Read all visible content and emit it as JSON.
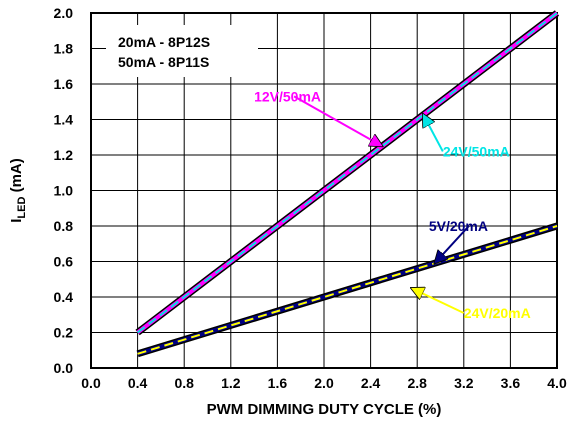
{
  "chart_data": {
    "type": "line",
    "title": "",
    "xlabel": "PWM DIMMING DUTY CYCLE (%)",
    "ylabel": {
      "main": "I",
      "sub": "LED",
      "unit": " (mA)"
    },
    "xlim": [
      0.0,
      4.0
    ],
    "ylim": [
      0.0,
      2.0
    ],
    "xticks": [
      "0.0",
      "0.4",
      "0.8",
      "1.2",
      "1.6",
      "2.0",
      "2.4",
      "2.8",
      "3.2",
      "3.6",
      "4.0"
    ],
    "yticks": [
      "0.0",
      "0.2",
      "0.4",
      "0.6",
      "0.8",
      "1.0",
      "1.2",
      "1.4",
      "1.6",
      "1.8",
      "2.0"
    ],
    "grid": true,
    "series": [
      {
        "name": "12V/50mA",
        "color": "#ff00ff",
        "x": [
          0.4,
          4.0
        ],
        "y": [
          0.2,
          2.0
        ],
        "style": "solid"
      },
      {
        "name": "24V/50mA",
        "color": "#00e5e5",
        "x": [
          0.4,
          4.0
        ],
        "y": [
          0.2,
          2.0
        ],
        "style": "dashed"
      },
      {
        "name": "5V/20mA",
        "color": "#000080",
        "x": [
          0.4,
          4.0
        ],
        "y": [
          0.08,
          0.8
        ],
        "style": "solid"
      },
      {
        "name": "24V/20mA",
        "color": "#ffff00",
        "x": [
          0.4,
          4.0
        ],
        "y": [
          0.08,
          0.8
        ],
        "style": "dashed"
      }
    ],
    "legend_box": [
      "20mA - 8P12S",
      "50mA - 8P11S"
    ],
    "annotations": [
      {
        "text": "12V/50mA",
        "color": "#ff00ff",
        "text_at": [
          1.4,
          1.53
        ],
        "arrow_to": [
          2.5,
          1.25
        ]
      },
      {
        "text": "24V/50mA",
        "color": "#00e5e5",
        "text_at": [
          3.02,
          1.22
        ],
        "arrow_to": [
          2.85,
          1.43
        ]
      },
      {
        "text": "5V/20mA",
        "color": "#000080",
        "text_at": [
          2.9,
          0.8
        ],
        "arrow_to": [
          2.95,
          0.59
        ]
      },
      {
        "text": "24V/20mA",
        "color": "#ffff00",
        "text_at": [
          3.2,
          0.31
        ],
        "arrow_to": [
          2.75,
          0.45
        ]
      }
    ]
  }
}
